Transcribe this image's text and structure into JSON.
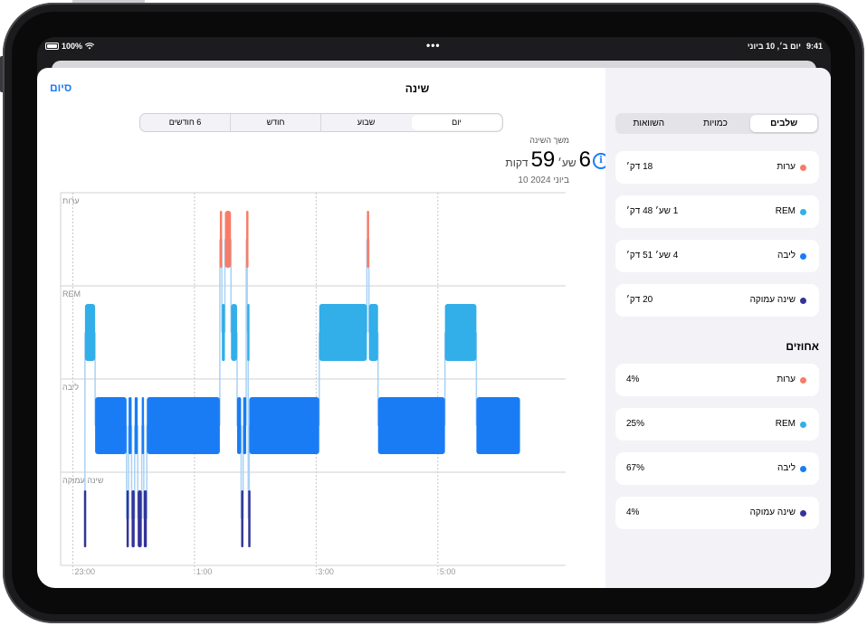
{
  "status": {
    "battery": "100%",
    "wifi_icon": "wifi-icon",
    "time": "9:41",
    "date": "יום ב׳, 10 ביוני"
  },
  "header": {
    "title": "שינה",
    "done_label": "סיום"
  },
  "tabs": {
    "day": "יום",
    "week": "שבוע",
    "month": "חודש",
    "six_months": "6 חודשים",
    "selected": "יום"
  },
  "summary": {
    "caption": "משך השינה",
    "hours": "6",
    "hours_unit": "שע׳",
    "minutes": "59",
    "minutes_unit": "דקות",
    "date": "10 ביוני 2024"
  },
  "sidebar": {
    "segments": [
      {
        "label": "שלבים",
        "selected": true
      },
      {
        "label": "כמויות",
        "selected": false
      },
      {
        "label": "השוואות",
        "selected": false
      }
    ],
    "durations": [
      {
        "label": "ערות",
        "value": "18 דק׳",
        "color": "#f77c68"
      },
      {
        "label": "REM",
        "value": "1 שע׳ 48 דק׳",
        "color": "#32aee8"
      },
      {
        "label": "ליבה",
        "value": "4 שע׳ 51 דק׳",
        "color": "#1a7cf5"
      },
      {
        "label": "שינה עמוקה",
        "value": "20 דק׳",
        "color": "#333399"
      }
    ],
    "percent_title": "אחוזים",
    "percentages": [
      {
        "label": "ערות",
        "value": "4%",
        "color": "#f77c68"
      },
      {
        "label": "REM",
        "value": "25%",
        "color": "#32aee8"
      },
      {
        "label": "ליבה",
        "value": "67%",
        "color": "#1a7cf5"
      },
      {
        "label": "שינה עמוקה",
        "value": "4%",
        "color": "#333399"
      }
    ]
  },
  "chart_data": {
    "type": "timeline",
    "stages": [
      "ערות",
      "REM",
      "ליבה",
      "שינה עמוקה"
    ],
    "x_ticks": [
      "23:00",
      "1:00",
      "3:00",
      "5:00"
    ],
    "x_range": [
      22.8,
      7.1
    ],
    "colors": {
      "ערות": "#f77c68",
      "REM": "#32aee8",
      "ליבה": "#1a7cf5",
      "שינה עמוקה": "#333399"
    },
    "segments": [
      {
        "stage": "שינה עמוקה",
        "start": "23:11",
        "end": "23:12"
      },
      {
        "stage": "REM",
        "start": "23:12",
        "end": "23:22"
      },
      {
        "stage": "ליבה",
        "start": "23:22",
        "end": "23:53"
      },
      {
        "stage": "שינה עמוקה",
        "start": "23:53",
        "end": "23:55"
      },
      {
        "stage": "ליבה",
        "start": "23:55",
        "end": "23:58"
      },
      {
        "stage": "שינה עמוקה",
        "start": "23:58",
        "end": "0:01"
      },
      {
        "stage": "ליבה",
        "start": "0:01",
        "end": "0:04"
      },
      {
        "stage": "שינה עמוקה",
        "start": "0:04",
        "end": "0:08"
      },
      {
        "stage": "ליבה",
        "start": "0:08",
        "end": "0:10"
      },
      {
        "stage": "שינה עמוקה",
        "start": "0:10",
        "end": "0:13"
      },
      {
        "stage": "ליבה",
        "start": "0:13",
        "end": "1:25"
      },
      {
        "stage": "ערות",
        "start": "1:25",
        "end": "1:27"
      },
      {
        "stage": "REM",
        "start": "1:27",
        "end": "1:30"
      },
      {
        "stage": "ערות",
        "start": "1:30",
        "end": "1:36"
      },
      {
        "stage": "REM",
        "start": "1:36",
        "end": "1:42"
      },
      {
        "stage": "ליבה",
        "start": "1:42",
        "end": "1:46"
      },
      {
        "stage": "שינה עמוקה",
        "start": "1:46",
        "end": "1:48"
      },
      {
        "stage": "ליבה",
        "start": "1:48",
        "end": "1:51"
      },
      {
        "stage": "ערות",
        "start": "1:51",
        "end": "1:52"
      },
      {
        "stage": "REM",
        "start": "1:52",
        "end": "1:53"
      },
      {
        "stage": "שינה עמוקה",
        "start": "1:53",
        "end": "1:54"
      },
      {
        "stage": "ליבה",
        "start": "1:54",
        "end": "3:03"
      },
      {
        "stage": "REM",
        "start": "3:03",
        "end": "3:50"
      },
      {
        "stage": "ערות",
        "start": "3:50",
        "end": "3:52"
      },
      {
        "stage": "REM",
        "start": "3:52",
        "end": "4:01"
      },
      {
        "stage": "ליבה",
        "start": "4:01",
        "end": "5:07"
      },
      {
        "stage": "REM",
        "start": "5:07",
        "end": "5:38"
      },
      {
        "stage": "ליבה",
        "start": "5:38",
        "end": "6:21"
      }
    ]
  }
}
